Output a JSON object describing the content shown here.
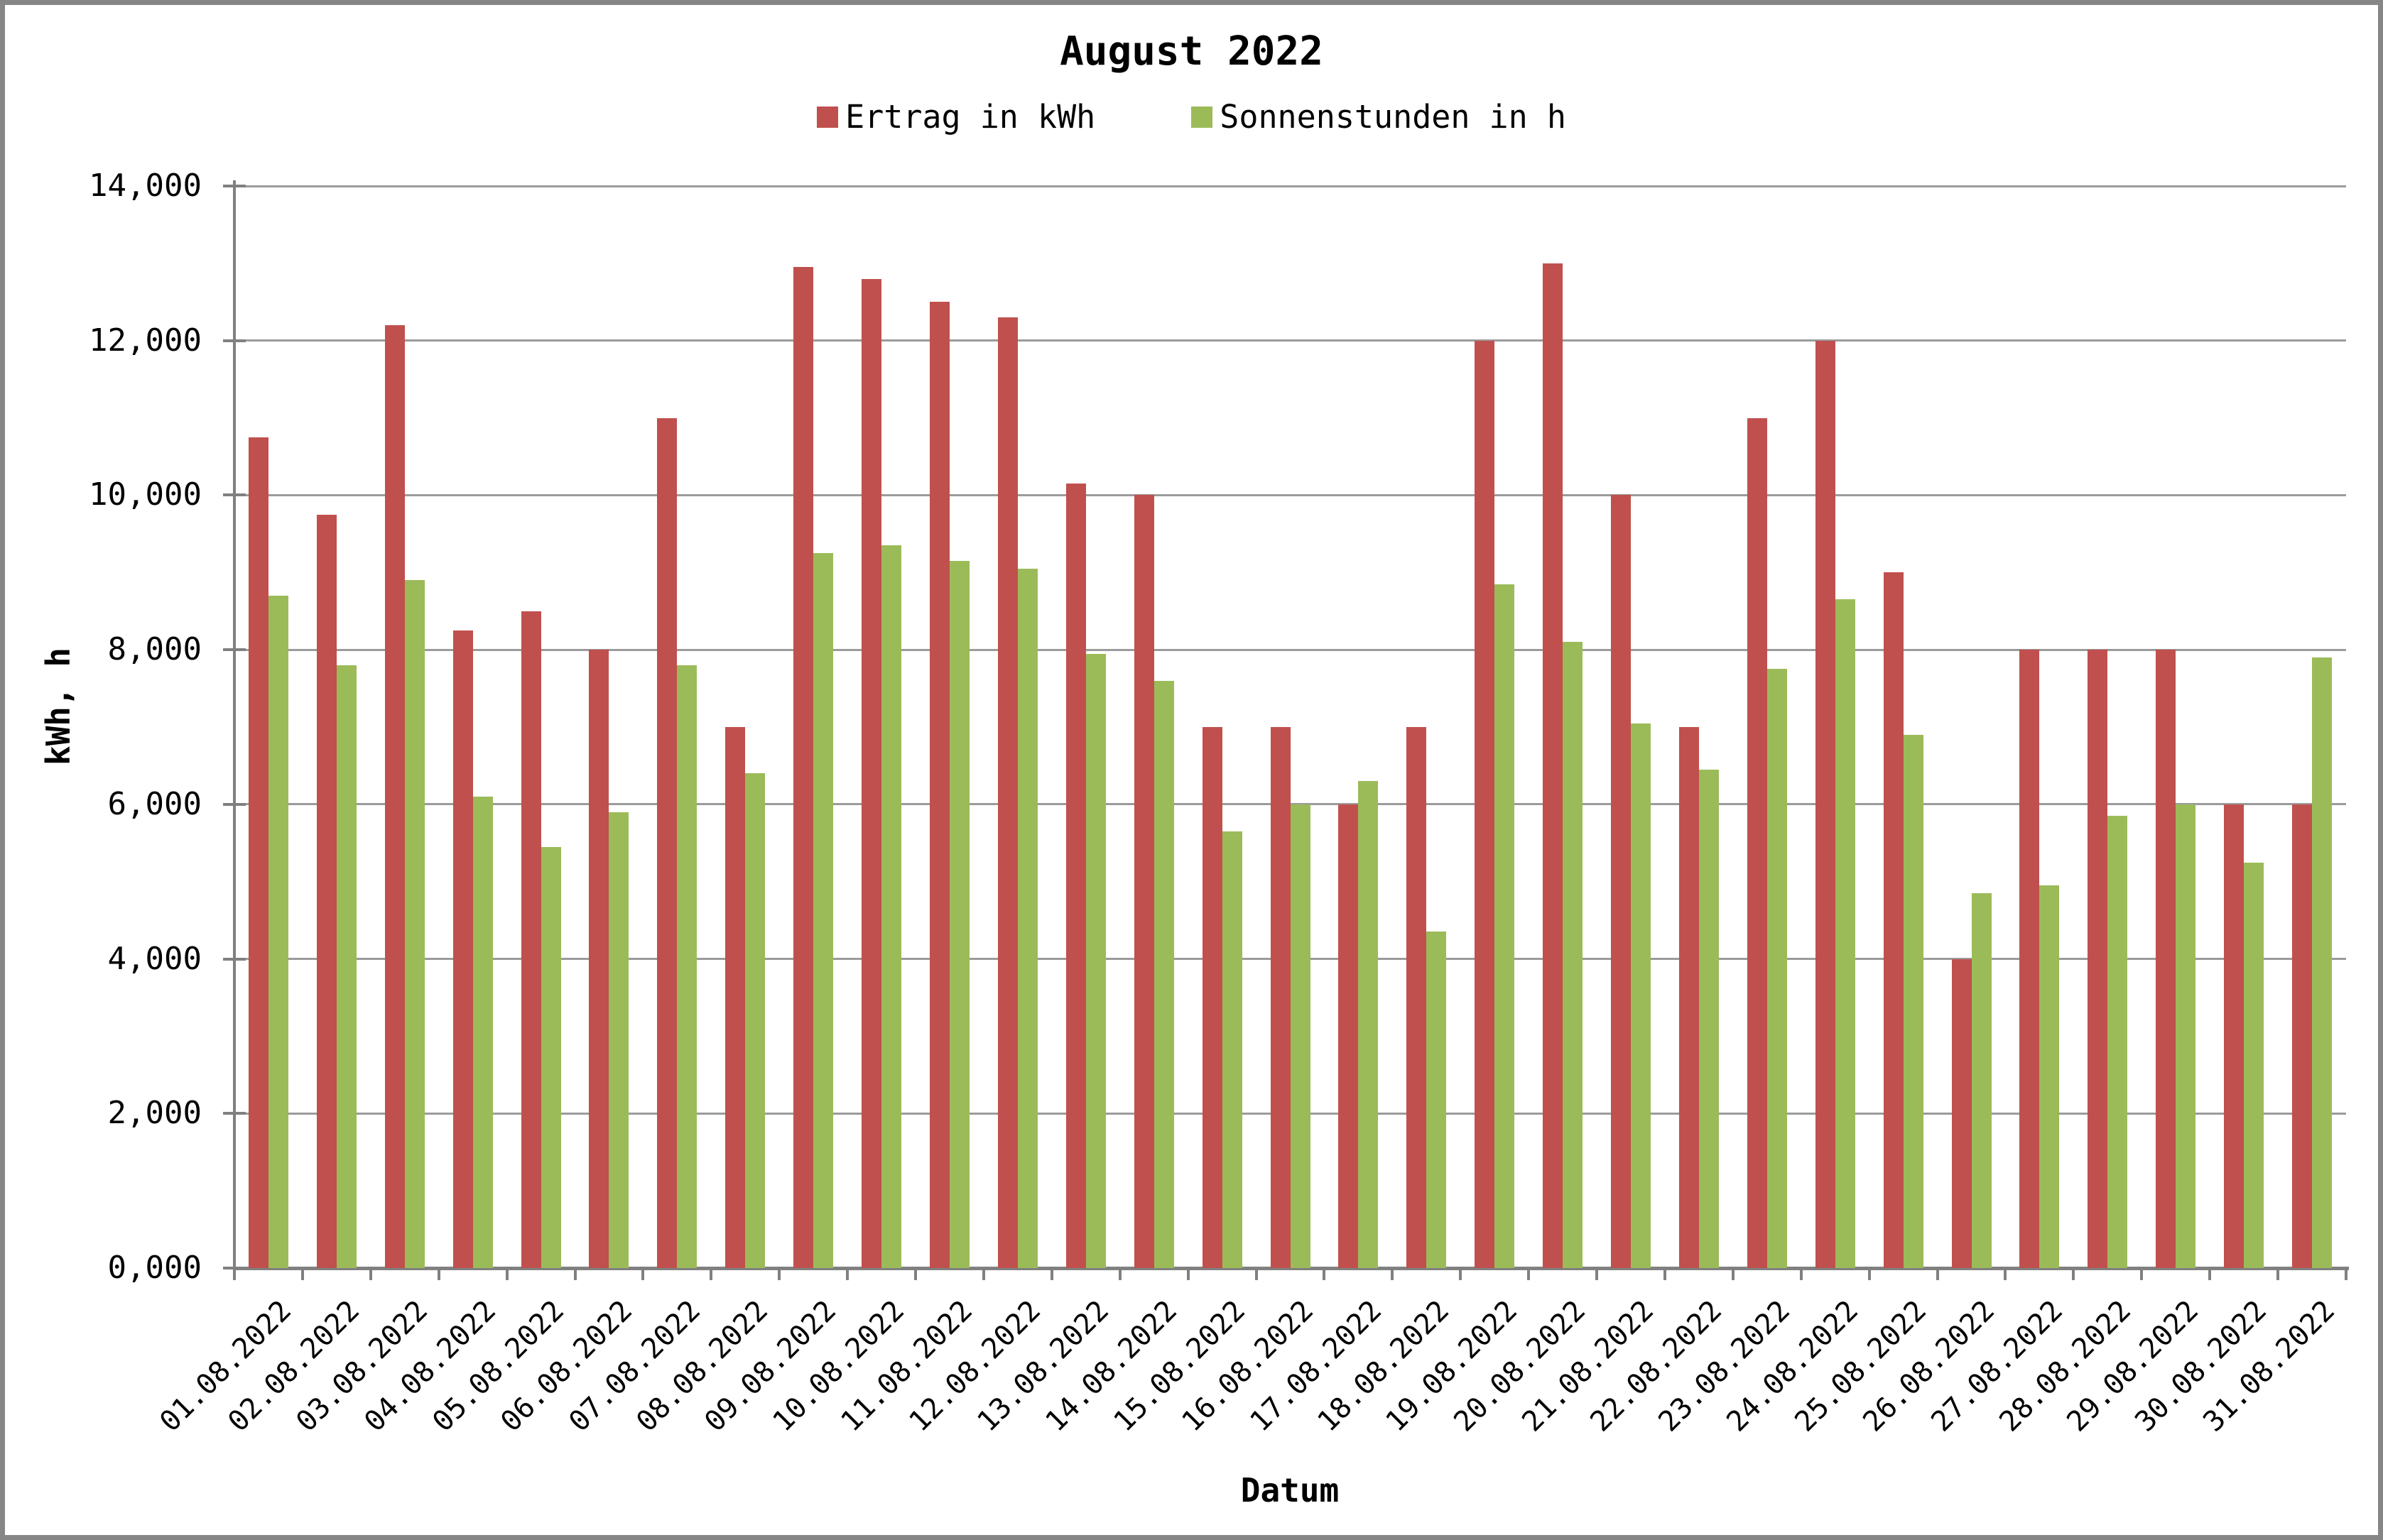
{
  "frame": {
    "border_color": "#868686",
    "background": "#ffffff"
  },
  "chart_data": {
    "type": "bar",
    "title": "August 2022",
    "xlabel": "Datum",
    "ylabel": "kWh, h",
    "ylim": [
      0,
      14000
    ],
    "y_tick_labels": [
      "0,000",
      "2,000",
      "4,000",
      "6,000",
      "8,000",
      "10,000",
      "12,000",
      "14,000"
    ],
    "number_format": "decimal comma (tick 14,000 = 14.000)",
    "grid": true,
    "legend_position": "top",
    "gridline_color": "#9b9b9b",
    "axis_color": "#808080",
    "categories": [
      "01.08.2022",
      "02.08.2022",
      "03.08.2022",
      "04.08.2022",
      "05.08.2022",
      "06.08.2022",
      "07.08.2022",
      "08.08.2022",
      "09.08.2022",
      "10.08.2022",
      "11.08.2022",
      "12.08.2022",
      "13.08.2022",
      "14.08.2022",
      "15.08.2022",
      "16.08.2022",
      "17.08.2022",
      "18.08.2022",
      "19.08.2022",
      "20.08.2022",
      "21.08.2022",
      "22.08.2022",
      "23.08.2022",
      "24.08.2022",
      "25.08.2022",
      "26.08.2022",
      "27.08.2022",
      "28.08.2022",
      "29.08.2022",
      "30.08.2022",
      "31.08.2022"
    ],
    "series": [
      {
        "name": "Ertrag in kWh",
        "color": "#C0504D",
        "values": [
          10750,
          9750,
          12200,
          8250,
          8500,
          8000,
          11000,
          7000,
          12950,
          12800,
          12500,
          12300,
          10150,
          10000,
          7000,
          7000,
          6000,
          7000,
          12000,
          13000,
          10000,
          7000,
          11000,
          12000,
          9000,
          4000,
          8000,
          8000,
          8000,
          6000,
          6000
        ]
      },
      {
        "name": "Sonnenstunden in h",
        "color": "#9BBB59",
        "values": [
          8700,
          7800,
          8900,
          6100,
          5450,
          5900,
          7800,
          6400,
          9250,
          9350,
          9150,
          9050,
          7950,
          7600,
          5650,
          6000,
          6300,
          4350,
          8850,
          8100,
          7050,
          6450,
          7750,
          8650,
          6900,
          4850,
          4950,
          5850,
          6000,
          5250,
          7900
        ]
      }
    ]
  }
}
